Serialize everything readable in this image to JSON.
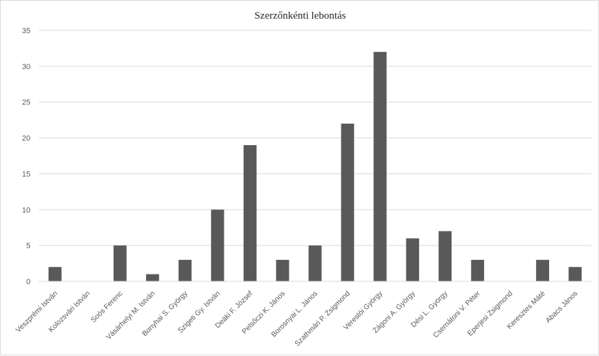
{
  "chart_data": {
    "type": "bar",
    "title": "Szerzőnkénti lebontás",
    "xlabel": "",
    "ylabel": "",
    "ylim": [
      0,
      35
    ],
    "yticks": [
      0,
      5,
      10,
      15,
      20,
      25,
      30,
      35
    ],
    "grid": true,
    "legend": "none",
    "bar_color": "#595959",
    "grid_color": "#d9d9d9",
    "categories": [
      "Veszprémi István",
      "Kolozsvári István",
      "Soós Ferenc",
      "Vásárhelyi M. István",
      "Bonyhai S. György",
      "Szigeti Gy. István",
      "Deáki F. József",
      "Pelsőczi K. János",
      "Borosnyai L. János",
      "Szathmári P. Zsigmond",
      "Verestói György",
      "Zágoni A. György",
      "Dési L. György",
      "Csernátoni V. Péter",
      "Eperjesi Zsigmond",
      "Keresztes Máté",
      "Abacs János"
    ],
    "values": [
      2,
      0,
      5,
      1,
      3,
      10,
      19,
      3,
      5,
      22,
      32,
      6,
      7,
      3,
      0,
      3,
      2
    ]
  }
}
